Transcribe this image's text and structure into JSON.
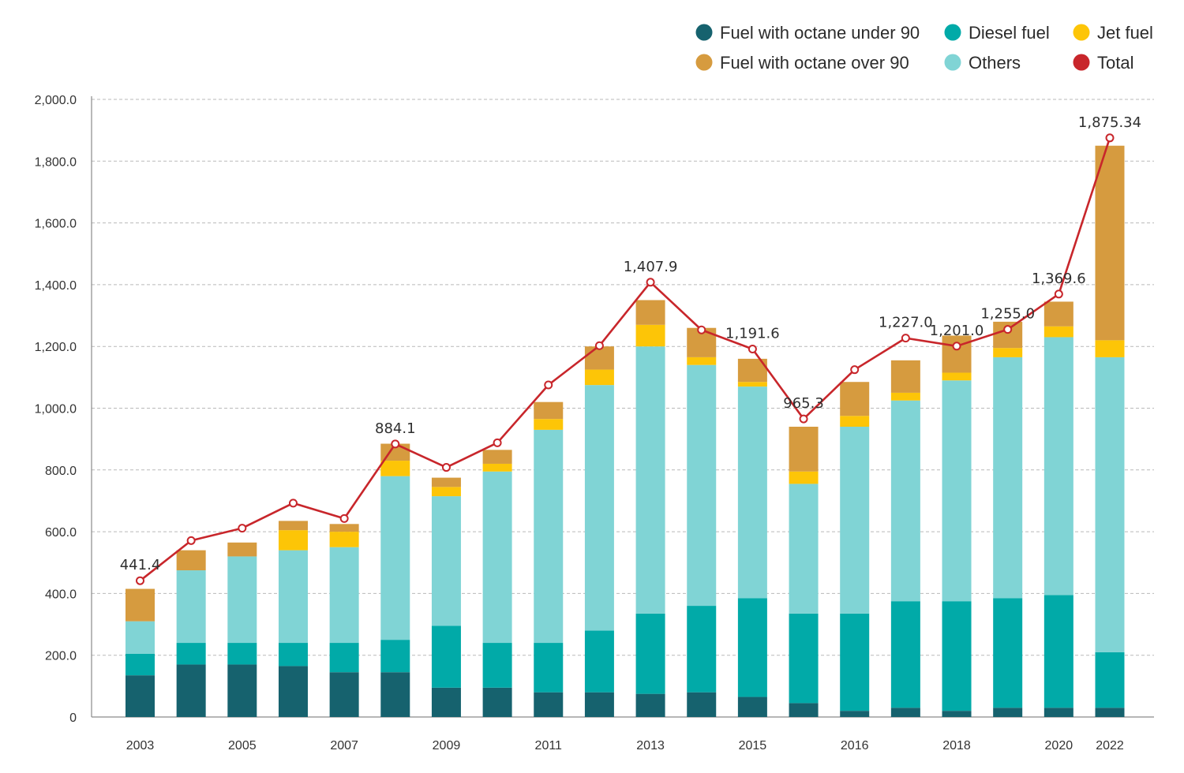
{
  "chart_data": {
    "type": "bar",
    "stacked": true,
    "title": "",
    "xlabel": "",
    "ylabel": "",
    "ylim": [
      0,
      2000
    ],
    "yticks": [
      "0",
      "200.0",
      "400.0",
      "600.0",
      "800.0",
      "1,000.0",
      "1,200.0",
      "1,400.0",
      "1,600.0",
      "1,800.0",
      "2,000.0"
    ],
    "grid": true,
    "legend_position": "top-right",
    "categories": [
      "2003",
      "2004",
      "2005",
      "2006",
      "2007",
      "2008",
      "2009",
      "2010",
      "2011",
      "2012",
      "2013",
      "2014",
      "2015",
      "2016",
      "2016",
      "2017",
      "2018",
      "2019",
      "2020",
      "2022"
    ],
    "x_tick_labels": [
      "2003",
      "",
      "2005",
      "",
      "2007",
      "",
      "2009",
      "",
      "2011",
      "",
      "2013",
      "",
      "2015",
      "",
      "2016",
      "",
      "2018",
      "",
      "2020",
      "2022"
    ],
    "series": [
      {
        "name": "Fuel with octane under 90",
        "color": "#16626e",
        "values": [
          135,
          170,
          170,
          165,
          145,
          145,
          95,
          95,
          80,
          80,
          75,
          80,
          65,
          45,
          20,
          30,
          20,
          30,
          30,
          30
        ]
      },
      {
        "name": "Diesel fuel",
        "color": "#01aaa8",
        "values": [
          70,
          70,
          70,
          75,
          95,
          105,
          200,
          145,
          160,
          200,
          260,
          280,
          320,
          290,
          315,
          345,
          355,
          355,
          365,
          180
        ]
      },
      {
        "name": "Others",
        "color": "#80d4d5",
        "values": [
          105,
          235,
          280,
          300,
          310,
          530,
          420,
          555,
          690,
          795,
          865,
          780,
          685,
          420,
          605,
          650,
          715,
          780,
          835,
          955
        ]
      },
      {
        "name": "Jet fuel",
        "color": "#fdc507",
        "values": [
          0,
          0,
          0,
          65,
          50,
          50,
          30,
          25,
          35,
          50,
          70,
          25,
          15,
          40,
          35,
          25,
          25,
          30,
          35,
          55
        ]
      },
      {
        "name": "Fuel with octane over 90",
        "color": "#d69b3f",
        "values": [
          105,
          65,
          45,
          30,
          25,
          55,
          30,
          45,
          55,
          75,
          80,
          95,
          75,
          145,
          110,
          105,
          120,
          85,
          80,
          630
        ]
      },
      {
        "name": "Total",
        "color": "#c8262b",
        "type": "line",
        "values": [
          441.4,
          571.3,
          611.5,
          692.6,
          642.8,
          884.1,
          808.3,
          888.0,
          1075.4,
          1202.5,
          1407.9,
          1253.5,
          1191.6,
          965.3,
          1124.7,
          1227.0,
          1201.0,
          1255.0,
          1369.6,
          1875.34
        ]
      }
    ],
    "data_labels": [
      {
        "index": 0,
        "text": "441.4"
      },
      {
        "index": 5,
        "text": "884.1"
      },
      {
        "index": 10,
        "text": "1,407.9"
      },
      {
        "index": 12,
        "text": "1,191.6"
      },
      {
        "index": 13,
        "text": "965.3"
      },
      {
        "index": 15,
        "text": "1,227.0"
      },
      {
        "index": 16,
        "text": "1,201.0"
      },
      {
        "index": 17,
        "text": "1,255.0"
      },
      {
        "index": 18,
        "text": "1,369.6"
      },
      {
        "index": 19,
        "text": "1,875.34"
      }
    ]
  }
}
